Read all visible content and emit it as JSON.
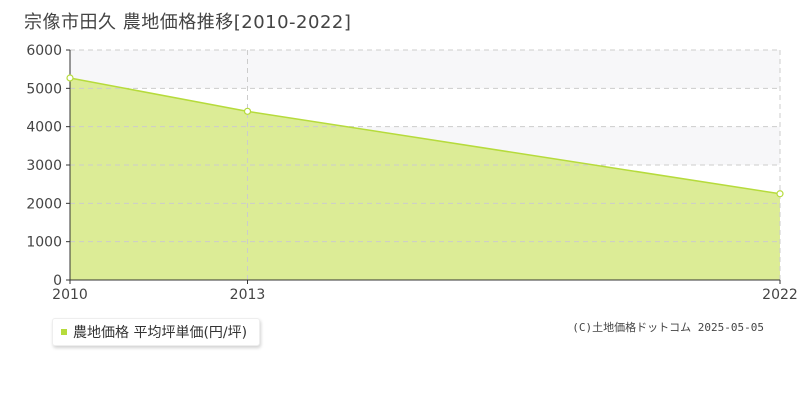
{
  "page_title": "宗像市田久 農地価格推移[2010-2022]",
  "legend": {
    "label": "農地価格 平均坪単価(円/坪)"
  },
  "copyright": "(C)土地価格ドットコム 2025-05-05",
  "colors": {
    "fill": "#dcec96",
    "line": "#b6db3c",
    "legend_swatch": "#b6db3c",
    "band": "#f7f7f9",
    "grid": "#cccccc",
    "axis": "#333333"
  },
  "chart_data": {
    "type": "area",
    "title": "宗像市田久 農地価格推移[2010-2022]",
    "xlabel": "",
    "ylabel": "",
    "x": [
      2010,
      2013,
      2022
    ],
    "x_ticks": [
      "2010",
      "2013",
      "2022"
    ],
    "xlim": [
      2010,
      2022
    ],
    "ylim": [
      0,
      6000
    ],
    "y_ticks": [
      0,
      1000,
      2000,
      3000,
      4000,
      5000,
      6000
    ],
    "grid": true,
    "legend_position": "bottom-left",
    "series": [
      {
        "name": "農地価格 平均坪単価(円/坪)",
        "values": [
          5270,
          4400,
          2250
        ]
      }
    ]
  }
}
